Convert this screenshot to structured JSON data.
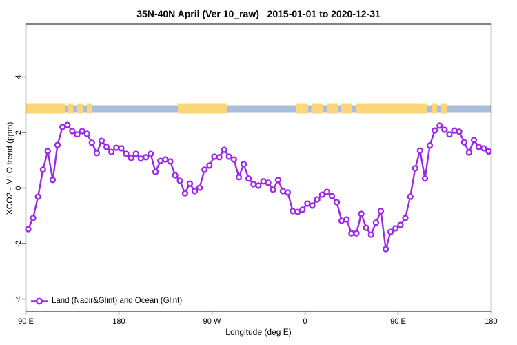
{
  "figure": {
    "title": "35N-40N April (Ver 10_raw)   2015-01-01 to 2020-12-31"
  },
  "chart_data": {
    "type": "line",
    "title": "35N-40N April (Ver 10_raw)   2015-01-01 to 2020-12-31",
    "xlabel": "Longitude (deg E)",
    "ylabel": "XCO2 - MLO trend (ppm)",
    "grid": false,
    "x_axis": {
      "range_deg": [
        0,
        450
      ],
      "ticks_deg": [
        0,
        90,
        180,
        270,
        360,
        450
      ],
      "tick_labels": [
        "90 E",
        "180",
        "90 W",
        "0",
        "90 E",
        "180"
      ]
    },
    "y_axis": {
      "range": [
        -4.45,
        5.9
      ],
      "ticks": [
        -4,
        -2,
        0,
        2,
        4
      ]
    },
    "legend": {
      "label": "Land (Nadir&Glint) and Ocean (Glint)",
      "position": "bottom-left"
    },
    "surface_band": {
      "description": "land/ocean strip near y=3 ppm",
      "center_ppm": 2.85,
      "land_color": "#FCD67B",
      "ocean_color": "#A9BEDB",
      "segments": [
        {
          "from_deg": 0.0,
          "to_deg": 38.3,
          "type": "land"
        },
        {
          "from_deg": 38.3,
          "to_deg": 41.0,
          "type": "ocean"
        },
        {
          "from_deg": 41.0,
          "to_deg": 45.7,
          "type": "land"
        },
        {
          "from_deg": 45.7,
          "to_deg": 49.7,
          "type": "ocean"
        },
        {
          "from_deg": 49.7,
          "to_deg": 55.0,
          "type": "land"
        },
        {
          "from_deg": 55.0,
          "to_deg": 59.0,
          "type": "ocean"
        },
        {
          "from_deg": 59.0,
          "to_deg": 63.7,
          "type": "land"
        },
        {
          "from_deg": 63.7,
          "to_deg": 147.0,
          "type": "ocean"
        },
        {
          "from_deg": 147.0,
          "to_deg": 195.0,
          "type": "land"
        },
        {
          "from_deg": 195.0,
          "to_deg": 261.7,
          "type": "ocean"
        },
        {
          "from_deg": 261.7,
          "to_deg": 273.0,
          "type": "land"
        },
        {
          "from_deg": 273.0,
          "to_deg": 276.3,
          "type": "ocean"
        },
        {
          "from_deg": 276.3,
          "to_deg": 287.0,
          "type": "land"
        },
        {
          "from_deg": 287.0,
          "to_deg": 291.0,
          "type": "ocean"
        },
        {
          "from_deg": 291.0,
          "to_deg": 301.7,
          "type": "land"
        },
        {
          "from_deg": 301.7,
          "to_deg": 305.0,
          "type": "ocean"
        },
        {
          "from_deg": 305.0,
          "to_deg": 315.7,
          "type": "land"
        },
        {
          "from_deg": 315.7,
          "to_deg": 319.0,
          "type": "ocean"
        },
        {
          "from_deg": 319.0,
          "to_deg": 388.3,
          "type": "land"
        },
        {
          "from_deg": 388.3,
          "to_deg": 392.3,
          "type": "ocean"
        },
        {
          "from_deg": 392.3,
          "to_deg": 397.7,
          "type": "land"
        },
        {
          "from_deg": 397.7,
          "to_deg": 401.7,
          "type": "ocean"
        },
        {
          "from_deg": 401.7,
          "to_deg": 407.0,
          "type": "land"
        },
        {
          "from_deg": 407.0,
          "to_deg": 450.0,
          "type": "ocean"
        }
      ]
    },
    "series": [
      {
        "name": "Land (Nadir&Glint) and Ocean (Glint)",
        "color": "#9B28E6",
        "marker": "open-circle",
        "x_deg": [
          2.3,
          7.0,
          11.8,
          16.5,
          21.2,
          26.0,
          30.7,
          35.4,
          40.2,
          44.9,
          49.7,
          54.4,
          59.1,
          63.9,
          68.6,
          73.3,
          78.1,
          82.8,
          87.5,
          92.3,
          97.0,
          101.8,
          106.5,
          111.2,
          116.0,
          120.7,
          125.4,
          130.2,
          134.9,
          139.7,
          144.4,
          149.1,
          153.9,
          158.6,
          163.3,
          168.1,
          172.8,
          177.5,
          182.3,
          187.0,
          191.8,
          196.5,
          201.2,
          206.0,
          210.7,
          215.4,
          220.2,
          224.9,
          229.7,
          234.4,
          239.1,
          243.9,
          248.6,
          253.3,
          258.1,
          262.8,
          267.5,
          272.3,
          277.0,
          281.8,
          286.5,
          291.2,
          296.0,
          300.7,
          305.4,
          310.2,
          314.9,
          319.7,
          324.4,
          329.1,
          333.9,
          338.6,
          343.3,
          348.1,
          352.8,
          357.5,
          362.3,
          367.0,
          371.8,
          376.5,
          381.2,
          386.0,
          390.7,
          395.4,
          400.2,
          404.9,
          409.7,
          414.4,
          419.1,
          423.9,
          428.6,
          433.3,
          438.1,
          442.8,
          447.5
        ],
        "y_ppm": [
          -1.48,
          -1.08,
          -0.31,
          0.66,
          1.33,
          0.29,
          1.55,
          2.2,
          2.27,
          2.05,
          1.93,
          2.05,
          1.95,
          1.63,
          1.26,
          1.7,
          1.48,
          1.3,
          1.45,
          1.43,
          1.23,
          1.08,
          1.23,
          1.06,
          1.11,
          1.23,
          0.58,
          0.98,
          1.03,
          0.96,
          0.46,
          0.26,
          -0.19,
          0.16,
          -0.11,
          0.01,
          0.66,
          0.81,
          1.13,
          1.11,
          1.38,
          1.13,
          1.03,
          0.39,
          0.86,
          0.34,
          0.14,
          0.09,
          0.24,
          0.19,
          -0.06,
          0.29,
          -0.11,
          -0.16,
          -0.83,
          -0.86,
          -0.78,
          -0.56,
          -0.63,
          -0.41,
          -0.24,
          -0.14,
          -0.29,
          -0.51,
          -1.18,
          -1.13,
          -1.63,
          -1.63,
          -0.93,
          -1.43,
          -1.68,
          -1.25,
          -0.83,
          -2.2,
          -1.58,
          -1.45,
          -1.33,
          -1.08,
          -0.31,
          0.71,
          1.35,
          0.34,
          1.53,
          2.07,
          2.25,
          2.1,
          1.93,
          2.07,
          2.03,
          1.65,
          1.28,
          1.73,
          1.48,
          1.43,
          1.32
        ]
      }
    ]
  }
}
